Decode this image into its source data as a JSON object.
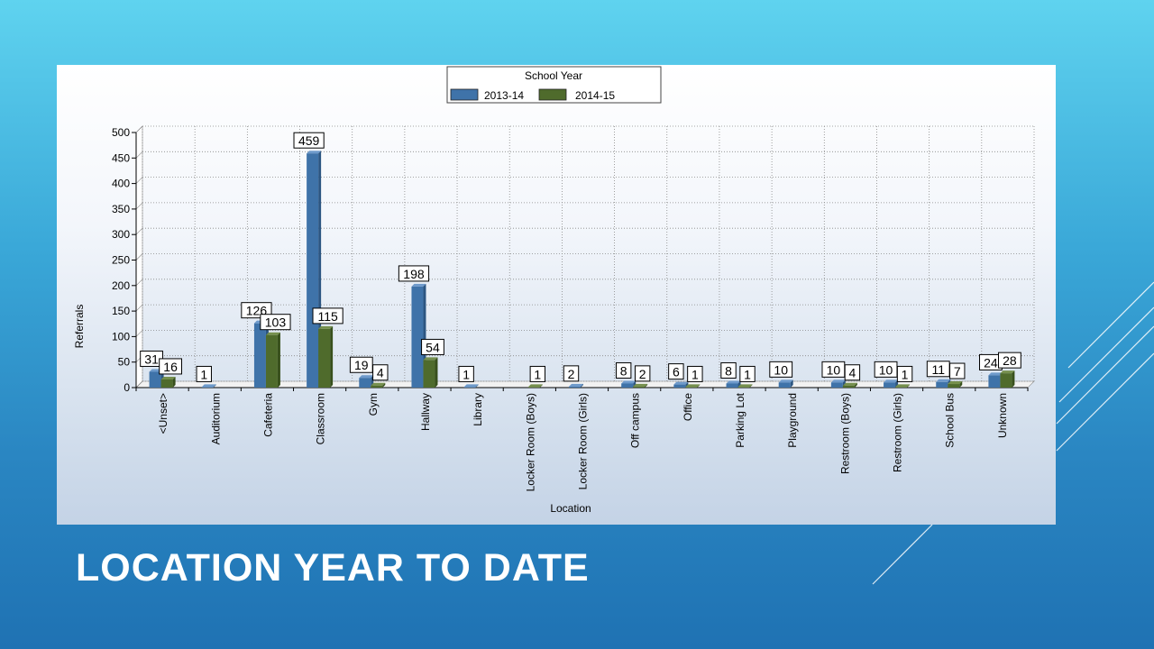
{
  "slide": {
    "title": "LOCATION YEAR TO DATE"
  },
  "colors": {
    "series1": "#3f73a9",
    "series2": "#4f6b2c",
    "background_start": "#5fd3ef",
    "background_end": "#1f72b3"
  },
  "chart_data": {
    "type": "bar",
    "xlabel": "Location",
    "ylabel": "Referrals",
    "ylim": [
      0,
      500
    ],
    "yticks": [
      0,
      50,
      100,
      150,
      200,
      250,
      300,
      350,
      400,
      450,
      500
    ],
    "grid": true,
    "legend": {
      "title": "School Year",
      "placement": "top-center"
    },
    "categories": [
      "<Unset>",
      "Auditorium",
      "Cafeteria",
      "Classroom",
      "Gym",
      "Hallway",
      "Library",
      "Locker Room (Boys)",
      "Locker Room (Girls)",
      "Off campus",
      "Office",
      "Parking Lot",
      "Playground",
      "Restroom (Boys)",
      "Restroom (Girls)",
      "School Bus",
      "Unknown"
    ],
    "series": [
      {
        "name": "2013-14",
        "values": [
          31,
          1,
          126,
          459,
          19,
          198,
          1,
          null,
          2,
          8,
          6,
          8,
          10,
          10,
          10,
          11,
          24
        ],
        "labels": [
          "31",
          "1",
          "126",
          "459",
          "19",
          "198",
          "1",
          "",
          "2",
          "8",
          "6",
          "8",
          "10",
          "10",
          "10",
          "11",
          "24"
        ]
      },
      {
        "name": "2014-15",
        "values": [
          16,
          null,
          103,
          115,
          4,
          54,
          null,
          1,
          null,
          2,
          1,
          1,
          null,
          4,
          1,
          7,
          28
        ],
        "labels": [
          "16",
          "",
          "103",
          "115",
          "4",
          "54",
          "",
          "1",
          "",
          "2",
          "1",
          "1",
          "",
          "4",
          "1",
          "7",
          "28"
        ]
      }
    ]
  }
}
